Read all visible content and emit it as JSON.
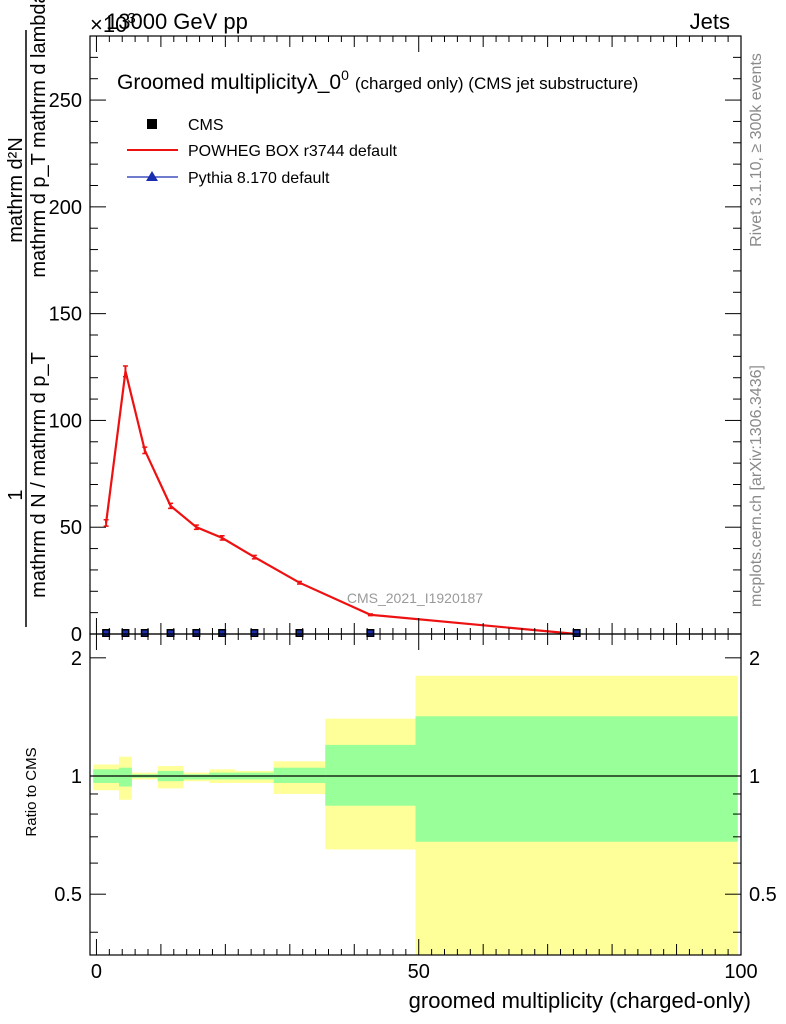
{
  "header": {
    "energy": "13000 GeV pp",
    "process": "Jets",
    "exponent": "×10",
    "exponent_power": "3"
  },
  "side_text": {
    "rivet": "Rivet 3.1.10, ≥ 300k events",
    "mcplots": "mcplots.cern.ch [arXiv:1306.3436]"
  },
  "watermark": "CMS_2021_I1920187",
  "chart_data": [
    {
      "type": "line",
      "title": "Groomed multiplicityλ_0",
      "title_sup": "0",
      "subtitle": "(charged only) (CMS jet substructure)",
      "ylabel_num": "mathrm d²N",
      "ylabel_den": "mathrm d p_T mathrm d lambda",
      "ylabel_prefix": "mathrm d N / mathrm d p_T",
      "ylabel_one": "1",
      "xlim": [
        -1,
        100
      ],
      "ylim": [
        0,
        280
      ],
      "yticks": [
        0,
        50,
        100,
        150,
        200,
        250
      ],
      "legend_position": "top-left",
      "legend": [
        {
          "name": "CMS",
          "color": "#000000",
          "marker": "square"
        },
        {
          "name": "POWHEG BOX r3744 default",
          "color": "#ee1111",
          "marker": "line"
        },
        {
          "name": "Pythia 8.170 default",
          "color": "#1a2fb0",
          "marker": "triangle"
        }
      ],
      "cms_points": [
        {
          "x": 1.5,
          "y": 0
        },
        {
          "x": 4.5,
          "y": 0
        },
        {
          "x": 7.5,
          "y": 0
        },
        {
          "x": 11.5,
          "y": 0
        },
        {
          "x": 15.5,
          "y": 0
        },
        {
          "x": 19.5,
          "y": 0
        },
        {
          "x": 24.5,
          "y": 0
        },
        {
          "x": 31.5,
          "y": 0
        },
        {
          "x": 42.5,
          "y": 0
        },
        {
          "x": 74.5,
          "y": 0
        }
      ],
      "powheg": {
        "x": [
          1.5,
          4.5,
          7.5,
          11.5,
          15.5,
          19.5,
          24.5,
          31.5,
          42.5,
          74.5
        ],
        "y": [
          52,
          123,
          86,
          60,
          50,
          45,
          36,
          24,
          9,
          0
        ],
        "err": [
          1.5,
          2.5,
          1.5,
          1.2,
          1.0,
          1.0,
          0.8,
          0.6,
          0.4,
          0.2
        ]
      }
    },
    {
      "type": "area",
      "ylabel": "Ratio to CMS",
      "xlabel": "groomed multiplicity (charged-only)",
      "xlim": [
        -1,
        100
      ],
      "ylim": [
        0.35,
        2.3
      ],
      "xticks": [
        0,
        50,
        100
      ],
      "yticks": [
        0.5,
        1,
        2
      ],
      "reference": 1,
      "bands": [
        {
          "x0": -0.5,
          "x1": 3.5,
          "g_lo": 0.96,
          "g_hi": 1.04,
          "y_lo": 0.92,
          "y_hi": 1.07
        },
        {
          "x0": 3.5,
          "x1": 5.5,
          "g_lo": 0.94,
          "g_hi": 1.05,
          "y_lo": 0.87,
          "y_hi": 1.12
        },
        {
          "x0": 5.5,
          "x1": 9.5,
          "g_lo": 0.99,
          "g_hi": 1.01,
          "y_lo": 0.98,
          "y_hi": 1.02
        },
        {
          "x0": 9.5,
          "x1": 13.5,
          "g_lo": 0.97,
          "g_hi": 1.03,
          "y_lo": 0.93,
          "y_hi": 1.06
        },
        {
          "x0": 13.5,
          "x1": 17.5,
          "g_lo": 0.98,
          "g_hi": 1.01,
          "y_lo": 0.97,
          "y_hi": 1.02
        },
        {
          "x0": 17.5,
          "x1": 21.5,
          "g_lo": 0.98,
          "g_hi": 1.02,
          "y_lo": 0.96,
          "y_hi": 1.04
        },
        {
          "x0": 21.5,
          "x1": 27.5,
          "g_lo": 0.98,
          "g_hi": 1.02,
          "y_lo": 0.96,
          "y_hi": 1.03
        },
        {
          "x0": 27.5,
          "x1": 35.5,
          "g_lo": 0.96,
          "g_hi": 1.05,
          "y_lo": 0.9,
          "y_hi": 1.09
        },
        {
          "x0": 35.5,
          "x1": 49.5,
          "g_lo": 0.84,
          "g_hi": 1.2,
          "y_lo": 0.65,
          "y_hi": 1.4
        },
        {
          "x0": 49.5,
          "x1": 99.5,
          "g_lo": 0.68,
          "g_hi": 1.42,
          "y_lo": 0.35,
          "y_hi": 1.8
        }
      ]
    }
  ],
  "colors": {
    "yellow_band": "#ffff99",
    "green_band": "#99ff99",
    "powheg": "#ee1111"
  }
}
